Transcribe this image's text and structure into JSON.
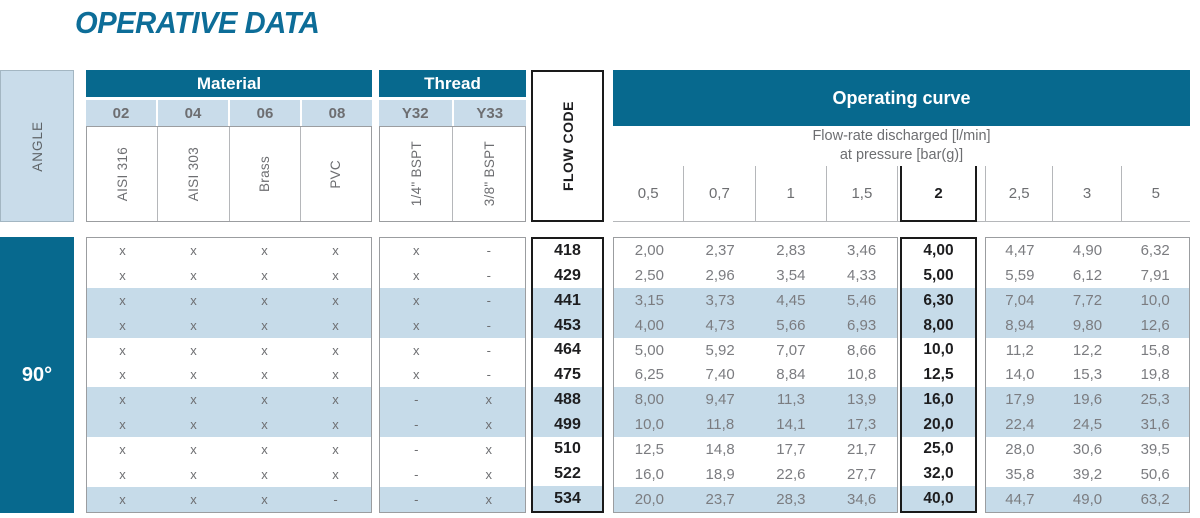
{
  "title": "OPERATIVE DATA",
  "angle": {
    "header": "ANGLE",
    "value": "90°"
  },
  "material": {
    "header": "Material",
    "codes": [
      "02",
      "04",
      "06",
      "08"
    ],
    "names": [
      "AISI 316",
      "AISI 303",
      "Brass",
      "PVC"
    ]
  },
  "thread": {
    "header": "Thread",
    "codes": [
      "Y32",
      "Y33"
    ],
    "names": [
      "1/4\" BSPT",
      "3/8\" BSPT"
    ]
  },
  "flow_code": {
    "header": "FLOW CODE"
  },
  "operating_curve": {
    "header": "Operating curve",
    "subtitle": [
      "Flow-rate discharged [l/min]",
      "at pressure [bar(g)]"
    ],
    "pressures_left": [
      "0,5",
      "0,7",
      "1",
      "1,5"
    ],
    "pressure_highlight": "2",
    "pressures_right": [
      "2,5",
      "3",
      "5"
    ]
  },
  "rows": [
    {
      "material": [
        "x",
        "x",
        "x",
        "x"
      ],
      "thread": [
        "x",
        "-"
      ],
      "code": "418",
      "left": [
        "2,00",
        "2,37",
        "2,83",
        "3,46"
      ],
      "mid": "4,00",
      "right": [
        "4,47",
        "4,90",
        "6,32"
      ],
      "shaded": false
    },
    {
      "material": [
        "x",
        "x",
        "x",
        "x"
      ],
      "thread": [
        "x",
        "-"
      ],
      "code": "429",
      "left": [
        "2,50",
        "2,96",
        "3,54",
        "4,33"
      ],
      "mid": "5,00",
      "right": [
        "5,59",
        "6,12",
        "7,91"
      ],
      "shaded": false
    },
    {
      "material": [
        "x",
        "x",
        "x",
        "x"
      ],
      "thread": [
        "x",
        "-"
      ],
      "code": "441",
      "left": [
        "3,15",
        "3,73",
        "4,45",
        "5,46"
      ],
      "mid": "6,30",
      "right": [
        "7,04",
        "7,72",
        "10,0"
      ],
      "shaded": true
    },
    {
      "material": [
        "x",
        "x",
        "x",
        "x"
      ],
      "thread": [
        "x",
        "-"
      ],
      "code": "453",
      "left": [
        "4,00",
        "4,73",
        "5,66",
        "6,93"
      ],
      "mid": "8,00",
      "right": [
        "8,94",
        "9,80",
        "12,6"
      ],
      "shaded": true
    },
    {
      "material": [
        "x",
        "x",
        "x",
        "x"
      ],
      "thread": [
        "x",
        "-"
      ],
      "code": "464",
      "left": [
        "5,00",
        "5,92",
        "7,07",
        "8,66"
      ],
      "mid": "10,0",
      "right": [
        "11,2",
        "12,2",
        "15,8"
      ],
      "shaded": false
    },
    {
      "material": [
        "x",
        "x",
        "x",
        "x"
      ],
      "thread": [
        "x",
        "-"
      ],
      "code": "475",
      "left": [
        "6,25",
        "7,40",
        "8,84",
        "10,8"
      ],
      "mid": "12,5",
      "right": [
        "14,0",
        "15,3",
        "19,8"
      ],
      "shaded": false
    },
    {
      "material": [
        "x",
        "x",
        "x",
        "x"
      ],
      "thread": [
        "-",
        "x"
      ],
      "code": "488",
      "left": [
        "8,00",
        "9,47",
        "11,3",
        "13,9"
      ],
      "mid": "16,0",
      "right": [
        "17,9",
        "19,6",
        "25,3"
      ],
      "shaded": true
    },
    {
      "material": [
        "x",
        "x",
        "x",
        "x"
      ],
      "thread": [
        "-",
        "x"
      ],
      "code": "499",
      "left": [
        "10,0",
        "11,8",
        "14,1",
        "17,3"
      ],
      "mid": "20,0",
      "right": [
        "22,4",
        "24,5",
        "31,6"
      ],
      "shaded": true
    },
    {
      "material": [
        "x",
        "x",
        "x",
        "x"
      ],
      "thread": [
        "-",
        "x"
      ],
      "code": "510",
      "left": [
        "12,5",
        "14,8",
        "17,7",
        "21,7"
      ],
      "mid": "25,0",
      "right": [
        "28,0",
        "30,6",
        "39,5"
      ],
      "shaded": false
    },
    {
      "material": [
        "x",
        "x",
        "x",
        "x"
      ],
      "thread": [
        "-",
        "x"
      ],
      "code": "522",
      "left": [
        "16,0",
        "18,9",
        "22,6",
        "27,7"
      ],
      "mid": "32,0",
      "right": [
        "35,8",
        "39,2",
        "50,6"
      ],
      "shaded": false
    },
    {
      "material": [
        "x",
        "x",
        "x",
        "-"
      ],
      "thread": [
        "-",
        "x"
      ],
      "code": "534",
      "left": [
        "20,0",
        "23,7",
        "28,3",
        "34,6"
      ],
      "mid": "40,0",
      "right": [
        "44,7",
        "49,0",
        "63,2"
      ],
      "shaded": true
    }
  ],
  "colors": {
    "banner_blue": "#07698e",
    "light_blue": "#c9dcea",
    "row_shade": "#c6dbe9",
    "title_blue": "#0d6d98",
    "text_gray": "#6d6e71"
  }
}
